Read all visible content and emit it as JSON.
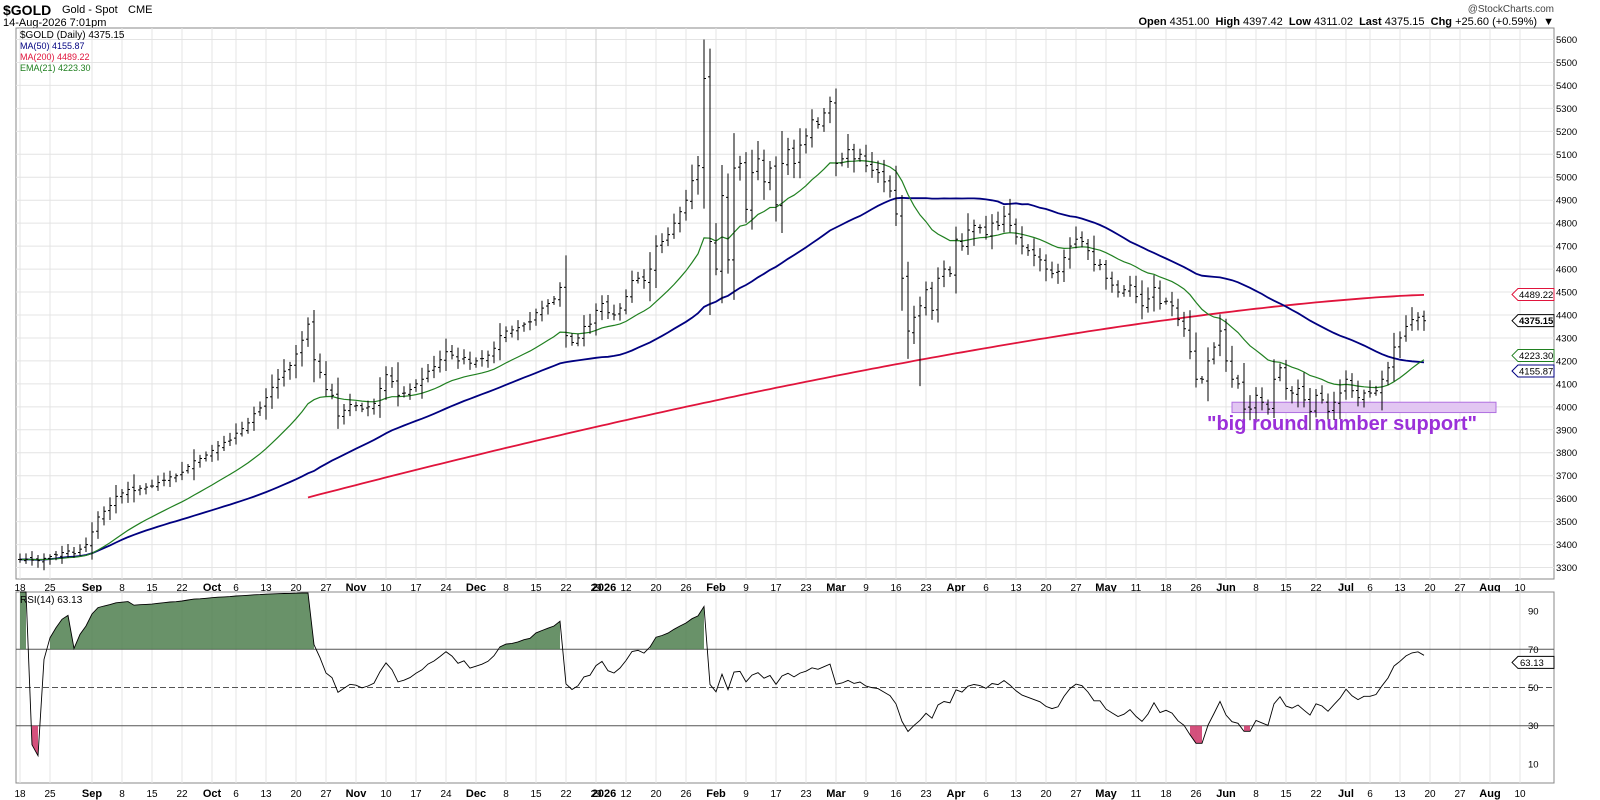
{
  "header": {
    "symbol": "$GOLD",
    "name": "Gold - Spot",
    "exchange": "CME",
    "date": "14-Aug-2026 7:01pm",
    "copyright": "@StockCharts.com",
    "quote": {
      "open_label": "Open",
      "open": "4351.00",
      "high_label": "High",
      "high": "4397.42",
      "low_label": "Low",
      "low": "4311.02",
      "last_label": "Last",
      "last": "4375.15",
      "chg_label": "Chg",
      "chg": "+25.60 (+0.59%)"
    }
  },
  "legend": {
    "price": "$GOLD (Daily) 4375.15",
    "ma50": "MA(50) 4155.87",
    "ma200": "MA(200) 4489.22",
    "ema21": "EMA(21) 4223.30"
  },
  "annotation": {
    "text": "\"big round number support\"",
    "support_low": 3975,
    "support_high": 4020
  },
  "colors": {
    "price": "#000000",
    "ma50": "#000080",
    "ma200": "#e0143c",
    "ema21": "#208020",
    "annotation": "#9b30d9",
    "support_fill": "#e2c6f2",
    "support_stroke": "#b070e0",
    "rsi_overbought_fill": "#4f7f4f",
    "rsi_oversold_fill": "#cc3366",
    "grid": "#e4e4e4"
  },
  "chart_data": {
    "type": "line",
    "xaxis": {
      "labels": [
        "18",
        "25",
        "Sep",
        "8",
        "15",
        "22",
        "Oct",
        "6",
        "13",
        "20",
        "27",
        "Nov",
        "10",
        "17",
        "24",
        "Dec",
        "8",
        "15",
        "22",
        "29",
        "2026",
        "12",
        "20",
        "26",
        "Feb",
        "9",
        "17",
        "23",
        "Mar",
        "9",
        "16",
        "23",
        "Apr",
        "6",
        "13",
        "20",
        "27",
        "May",
        "11",
        "18",
        "26",
        "Jun",
        "8",
        "15",
        "22",
        "Jul",
        "6",
        "13",
        "20",
        "27",
        "Aug",
        "10"
      ],
      "label_index": [
        0,
        5,
        12,
        17,
        22,
        27,
        32,
        36,
        41,
        46,
        51,
        56,
        61,
        66,
        71,
        76,
        81,
        86,
        91,
        96,
        96,
        101,
        106,
        111,
        116,
        121,
        126,
        131,
        136,
        141,
        146,
        151,
        156,
        161,
        166,
        171,
        176,
        181,
        186,
        191,
        196,
        201,
        206,
        211,
        216,
        221,
        225,
        230,
        235,
        240,
        245,
        250
      ]
    },
    "price_panel": {
      "ylim": [
        3250,
        5650
      ],
      "yticks": [
        3300,
        3400,
        3500,
        3600,
        3700,
        3800,
        3900,
        4000,
        4100,
        4200,
        4300,
        4400,
        4500,
        4600,
        4700,
        4800,
        4900,
        5000,
        5100,
        5200,
        5300,
        5400,
        5500,
        5600
      ],
      "closes": [
        3335,
        3336,
        3332,
        3330,
        3340,
        3348,
        3355,
        3365,
        3372,
        3360,
        3380,
        3400,
        3455,
        3520,
        3545,
        3570,
        3610,
        3625,
        3640,
        3635,
        3645,
        3650,
        3655,
        3670,
        3680,
        3695,
        3700,
        3715,
        3740,
        3765,
        3775,
        3790,
        3810,
        3830,
        3845,
        3855,
        3885,
        3905,
        3930,
        3970,
        3995,
        4040,
        4085,
        4120,
        4155,
        4180,
        4230,
        4290,
        4360,
        4205,
        4150,
        4075,
        4050,
        3960,
        3985,
        4010,
        4005,
        3990,
        4000,
        4015,
        4080,
        4140,
        4110,
        4050,
        4060,
        4075,
        4100,
        4120,
        4155,
        4175,
        4205,
        4240,
        4225,
        4200,
        4215,
        4190,
        4200,
        4210,
        4225,
        4255,
        4310,
        4330,
        4335,
        4345,
        4360,
        4370,
        4410,
        4430,
        4450,
        4470,
        4520,
        4310,
        4280,
        4300,
        4350,
        4360,
        4420,
        4450,
        4410,
        4400,
        4430,
        4480,
        4550,
        4560,
        4550,
        4600,
        4700,
        4720,
        4750,
        4800,
        4850,
        4900,
        4985,
        5050,
        5430,
        4720,
        4600,
        4920,
        4640,
        5040,
        5060,
        4860,
        5020,
        5080,
        4980,
        5040,
        4880,
        5060,
        5120,
        5060,
        5140,
        5180,
        5250,
        5230,
        5280,
        5330,
        5060,
        5080,
        5120,
        5080,
        5100,
        5050,
        5030,
        5020,
        4980,
        4940,
        4840,
        4560,
        4330,
        4390,
        4440,
        4510,
        4420,
        4560,
        4600,
        4580,
        4730,
        4700,
        4770,
        4790,
        4780,
        4750,
        4800,
        4790,
        4830,
        4790,
        4740,
        4700,
        4680,
        4660,
        4640,
        4600,
        4580,
        4590,
        4650,
        4700,
        4730,
        4720,
        4680,
        4620,
        4620,
        4560,
        4530,
        4500,
        4510,
        4530,
        4480,
        4440,
        4470,
        4520,
        4450,
        4460,
        4440,
        4380,
        4340,
        4240,
        4120,
        4120,
        4200,
        4260,
        4330,
        4200,
        4120,
        4100,
        3990,
        3990,
        4050,
        4020,
        3990,
        4120,
        4170,
        4080,
        4060,
        4080,
        4030,
        3980,
        4050,
        4030,
        3980,
        4020,
        4060,
        4120,
        4070,
        4040,
        4060,
        4060,
        4070,
        4120,
        4170,
        4260,
        4300,
        4350,
        4380,
        4390,
        4375
      ],
      "series": [
        {
          "name": "MA(50)",
          "last": 4155.87
        },
        {
          "name": "MA(200)",
          "last": 4489.22
        },
        {
          "name": "EMA(21)",
          "last": 4223.3
        }
      ],
      "last_labels": [
        "4489.22",
        "4375.15",
        "4223.30",
        "4155.87"
      ]
    },
    "rsi_panel": {
      "title": "RSI(14) 63.13",
      "ylim": [
        0,
        100
      ],
      "yticks": [
        10,
        30,
        50,
        70,
        90
      ],
      "overbought": 70,
      "oversold": 30,
      "mid": 50,
      "last_label": "63.13"
    }
  }
}
